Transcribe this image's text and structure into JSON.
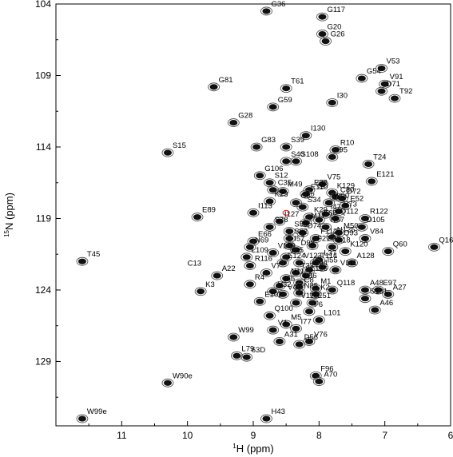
{
  "chart_data": {
    "type": "scatter",
    "x_axis": {
      "title": "1H (ppm)",
      "title_sup": "1",
      "title_main": "H (ppm)",
      "range": [
        12,
        6
      ],
      "ticks": [
        "11",
        "10",
        "9",
        "8",
        "7",
        "6"
      ]
    },
    "y_axis": {
      "title": "15N (ppm)",
      "title_sup": "15",
      "title_main": "N (ppm)",
      "range": [
        104,
        133.5
      ],
      "ticks": [
        "104",
        "109",
        "114",
        "119",
        "124",
        "129"
      ]
    },
    "grid": false,
    "colors": {
      "positive": "#111111",
      "negative": "#e03030",
      "contour": "#444444"
    },
    "points": [
      {
        "x": 8.8,
        "y": 104.5,
        "label": "G36"
      },
      {
        "x": 7.95,
        "y": 104.9,
        "label": "G117"
      },
      {
        "x": 7.95,
        "y": 106.1,
        "label": "G20"
      },
      {
        "x": 7.9,
        "y": 106.6,
        "label": "G26"
      },
      {
        "x": 7.35,
        "y": 109.2,
        "label": "G54"
      },
      {
        "x": 7.05,
        "y": 108.5,
        "label": "V53"
      },
      {
        "x": 7.0,
        "y": 109.6,
        "label": "V91"
      },
      {
        "x": 7.05,
        "y": 110.1,
        "label": "D71"
      },
      {
        "x": 6.85,
        "y": 110.6,
        "label": "T92"
      },
      {
        "x": 9.6,
        "y": 109.8,
        "label": "G81"
      },
      {
        "x": 8.5,
        "y": 109.9,
        "label": "T61"
      },
      {
        "x": 7.8,
        "y": 110.9,
        "label": "I30"
      },
      {
        "x": 8.7,
        "y": 111.2,
        "label": "G59"
      },
      {
        "x": 9.3,
        "y": 112.3,
        "label": "G28"
      },
      {
        "x": 8.2,
        "y": 113.2,
        "label": "I130"
      },
      {
        "x": 8.95,
        "y": 114.0,
        "label": "G83"
      },
      {
        "x": 8.5,
        "y": 114.0,
        "label": "S39"
      },
      {
        "x": 7.75,
        "y": 114.2,
        "label": "R10"
      },
      {
        "x": 7.8,
        "y": 114.7,
        "label": "I95"
      },
      {
        "x": 8.5,
        "y": 115.0,
        "label": "S40"
      },
      {
        "x": 8.35,
        "y": 115.0,
        "label": "S108"
      },
      {
        "x": 7.25,
        "y": 115.2,
        "label": "T24"
      },
      {
        "x": 10.3,
        "y": 114.4,
        "label": "S15"
      },
      {
        "x": 8.9,
        "y": 116.0,
        "label": "G106"
      },
      {
        "x": 8.75,
        "y": 116.5,
        "label": "S12"
      },
      {
        "x": 7.2,
        "y": 116.4,
        "label": "E121"
      },
      {
        "x": 7.95,
        "y": 116.6,
        "label": "V75"
      },
      {
        "x": 8.7,
        "y": 117.0,
        "label": "C35"
      },
      {
        "x": 8.55,
        "y": 117.1,
        "label": "M49"
      },
      {
        "x": 8.15,
        "y": 117.0,
        "label": "E38"
      },
      {
        "x": 8.2,
        "y": 117.3,
        "label": "E110"
      },
      {
        "x": 7.8,
        "y": 117.2,
        "label": "K129"
      },
      {
        "x": 7.75,
        "y": 117.5,
        "label": "C80"
      },
      {
        "x": 7.65,
        "y": 117.6,
        "label": "D72"
      },
      {
        "x": 8.75,
        "y": 117.8,
        "label": "K23"
      },
      {
        "x": 8.35,
        "y": 117.9,
        "label": "C82"
      },
      {
        "x": 7.85,
        "y": 117.9,
        "label": "W90"
      },
      {
        "x": 7.6,
        "y": 118.1,
        "label": "E52"
      },
      {
        "x": 8.25,
        "y": 118.2,
        "label": "S34"
      },
      {
        "x": 9.0,
        "y": 118.6,
        "label": "I113"
      },
      {
        "x": 7.7,
        "y": 118.5,
        "label": "V73"
      },
      {
        "x": 7.9,
        "y": 118.7,
        "label": "I47"
      },
      {
        "x": 8.15,
        "y": 118.9,
        "label": "K29"
      },
      {
        "x": 8.0,
        "y": 119.1,
        "label": "F68"
      },
      {
        "x": 7.75,
        "y": 119.0,
        "label": "Q112"
      },
      {
        "x": 7.3,
        "y": 119.0,
        "label": "R122"
      },
      {
        "x": 9.85,
        "y": 118.9,
        "label": "E89"
      },
      {
        "x": 8.6,
        "y": 119.2,
        "label": "I127"
      },
      {
        "x": 8.2,
        "y": 119.3,
        "label": "M17"
      },
      {
        "x": 7.9,
        "y": 119.6,
        "label": "N67"
      },
      {
        "x": 7.35,
        "y": 119.6,
        "label": "D105"
      },
      {
        "x": 8.75,
        "y": 119.6,
        "label": "S78"
      },
      {
        "x": 8.45,
        "y": 119.9,
        "label": "S58"
      },
      {
        "x": 8.25,
        "y": 120.0,
        "label": "D74"
      },
      {
        "x": 7.7,
        "y": 120.0,
        "label": "M50"
      },
      {
        "x": 7.8,
        "y": 120.3,
        "label": "N125"
      },
      {
        "x": 7.3,
        "y": 120.4,
        "label": "V84"
      },
      {
        "x": 8.45,
        "y": 120.4,
        "label": "S62"
      },
      {
        "x": 8.05,
        "y": 120.4,
        "label": "F112"
      },
      {
        "x": 7.7,
        "y": 120.5,
        "label": "Q93"
      },
      {
        "x": 9.0,
        "y": 120.6,
        "label": "E66"
      },
      {
        "x": 8.45,
        "y": 120.9,
        "label": "I57"
      },
      {
        "x": 8.1,
        "y": 120.9,
        "label": "F21"
      },
      {
        "x": 7.8,
        "y": 121.0,
        "label": "A18"
      },
      {
        "x": 9.05,
        "y": 121.0,
        "label": "N69"
      },
      {
        "x": 8.35,
        "y": 121.2,
        "label": "D98"
      },
      {
        "x": 7.6,
        "y": 121.3,
        "label": "K120"
      },
      {
        "x": 6.95,
        "y": 121.3,
        "label": "Q60"
      },
      {
        "x": 8.7,
        "y": 121.4,
        "label": "V119"
      },
      {
        "x": 9.1,
        "y": 121.7,
        "label": "L109"
      },
      {
        "x": 8.5,
        "y": 121.7,
        "label": "L25"
      },
      {
        "x": 8.0,
        "y": 121.9,
        "label": "L37"
      },
      {
        "x": 7.5,
        "y": 122.1,
        "label": "A128"
      },
      {
        "x": 8.55,
        "y": 122.1,
        "label": "E124"
      },
      {
        "x": 8.3,
        "y": 122.1,
        "label": "V123"
      },
      {
        "x": 8.05,
        "y": 122.1,
        "label": "T114"
      },
      {
        "x": 9.05,
        "y": 122.3,
        "label": "R116"
      },
      {
        "x": 7.95,
        "y": 122.4,
        "label": "I55"
      },
      {
        "x": 8.15,
        "y": 122.6,
        "label": "E94"
      },
      {
        "x": 8.35,
        "y": 122.8,
        "label": "T33"
      },
      {
        "x": 7.75,
        "y": 122.6,
        "label": "V111"
      },
      {
        "x": 8.8,
        "y": 122.8,
        "label": "V7"
      },
      {
        "x": 8.5,
        "y": 123.2,
        "label": "N11"
      },
      {
        "x": 8.2,
        "y": 123.0,
        "label": "L126"
      },
      {
        "x": 9.55,
        "y": 123.0,
        "label": "A22"
      },
      {
        "x": 8.3,
        "y": 123.5,
        "label": "L86"
      },
      {
        "x": 9.05,
        "y": 123.6,
        "label": "R4"
      },
      {
        "x": 8.6,
        "y": 123.7,
        "label": "I65"
      },
      {
        "x": 8.3,
        "y": 123.8,
        "label": "C8"
      },
      {
        "x": 8.05,
        "y": 123.9,
        "label": "M1"
      },
      {
        "x": 7.8,
        "y": 124.0,
        "label": "Q118"
      },
      {
        "x": 9.8,
        "y": 124.1,
        "label": "K3"
      },
      {
        "x": 8.7,
        "y": 124.1,
        "label": "V32"
      },
      {
        "x": 8.55,
        "y": 124.3,
        "label": "V42"
      },
      {
        "x": 8.3,
        "y": 124.2,
        "label": "N85"
      },
      {
        "x": 8.05,
        "y": 124.3,
        "label": "K2"
      },
      {
        "x": 7.3,
        "y": 124.0,
        "label": "A48"
      },
      {
        "x": 7.1,
        "y": 124.0,
        "label": "E97"
      },
      {
        "x": 6.95,
        "y": 124.3,
        "label": "A27"
      },
      {
        "x": 7.3,
        "y": 124.6,
        "label": "S131"
      },
      {
        "x": 8.9,
        "y": 124.8,
        "label": "E102"
      },
      {
        "x": 8.35,
        "y": 124.9,
        "label": "V115"
      },
      {
        "x": 8.1,
        "y": 124.9,
        "label": "E51"
      },
      {
        "x": 7.15,
        "y": 125.4,
        "label": "A46"
      },
      {
        "x": 8.15,
        "y": 125.5,
        "label": "F6"
      },
      {
        "x": 8.75,
        "y": 125.8,
        "label": "Q100"
      },
      {
        "x": 8.0,
        "y": 126.1,
        "label": "L101"
      },
      {
        "x": 8.5,
        "y": 126.4,
        "label": "M5"
      },
      {
        "x": 8.35,
        "y": 126.7,
        "label": "I77"
      },
      {
        "x": 8.7,
        "y": 126.8,
        "label": "V4"
      },
      {
        "x": 9.3,
        "y": 127.3,
        "label": "W99"
      },
      {
        "x": 8.6,
        "y": 127.6,
        "label": "A31"
      },
      {
        "x": 8.3,
        "y": 127.8,
        "label": "D56"
      },
      {
        "x": 8.15,
        "y": 127.6,
        "label": "V76"
      },
      {
        "x": 9.25,
        "y": 128.6,
        "label": "L79"
      },
      {
        "x": 9.1,
        "y": 128.7,
        "label": "63D"
      },
      {
        "x": 8.05,
        "y": 130.0,
        "label": "F96"
      },
      {
        "x": 8.0,
        "y": 130.4,
        "label": "A70"
      },
      {
        "x": 10.3,
        "y": 130.5,
        "label": "W90e"
      },
      {
        "x": 11.6,
        "y": 122.0,
        "label": "T45"
      },
      {
        "x": 6.25,
        "y": 121.0,
        "label": "Q16"
      },
      {
        "x": 8.8,
        "y": 133.0,
        "label": "H43"
      },
      {
        "x": 11.6,
        "y": 133.0,
        "label": "W99e"
      }
    ],
    "annotations": [
      {
        "x": 10.0,
        "y": 122.3,
        "label": "C13"
      },
      {
        "x": 8.5,
        "y": 118.6,
        "label": "I113"
      }
    ]
  }
}
